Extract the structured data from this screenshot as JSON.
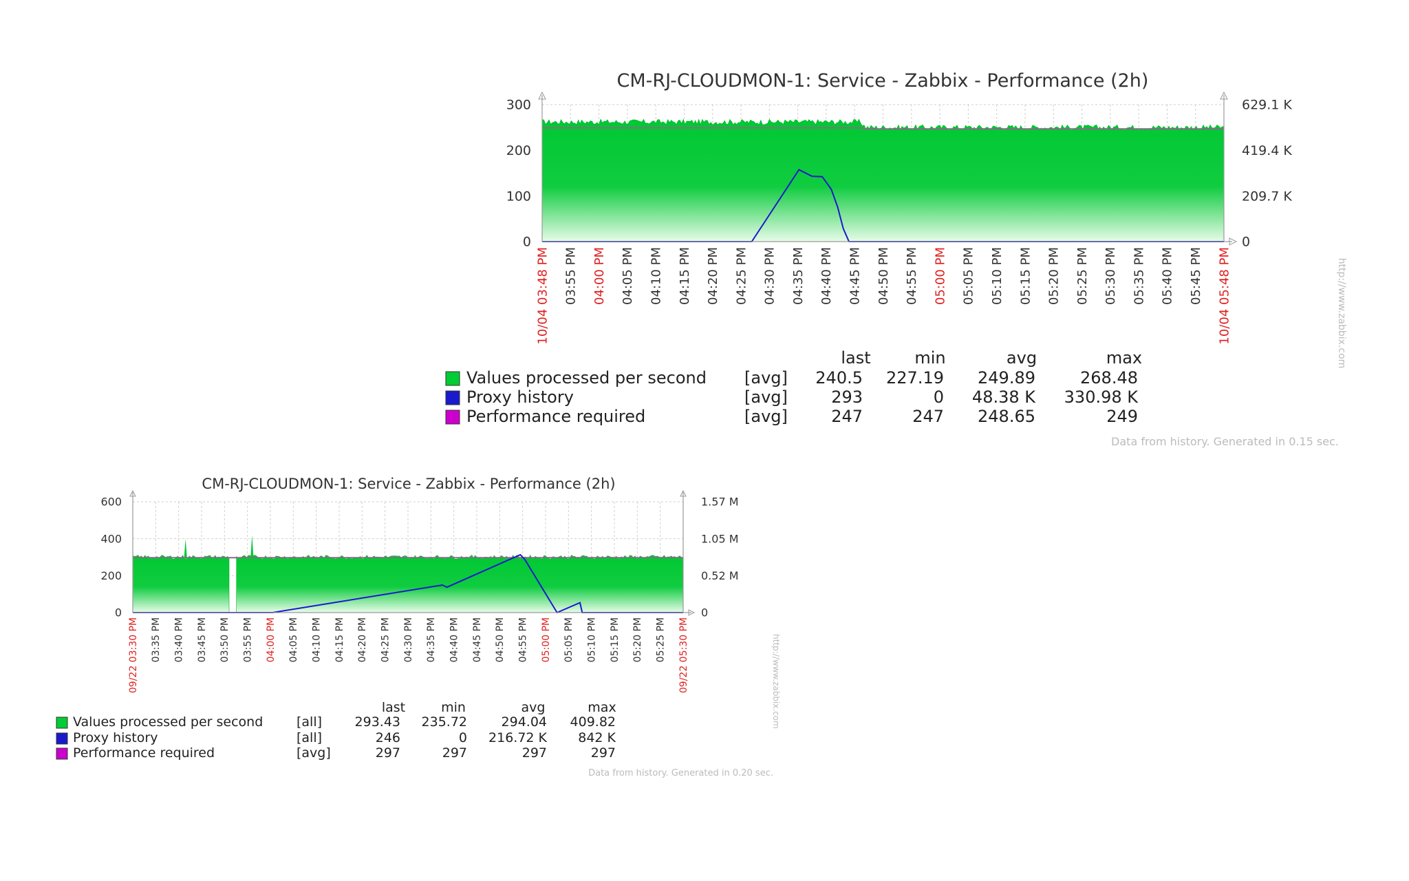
{
  "chart_data": [
    {
      "type": "area",
      "title": "CM-RJ-CLOUDMON-1: Service - Zabbix - Performance (2h)",
      "left_axis": {
        "ylim": [
          0,
          300
        ],
        "ticks": [
          "0",
          "100",
          "200",
          "300"
        ]
      },
      "right_axis": {
        "ylim": [
          0,
          629.1
        ],
        "unit": "K",
        "ticks": [
          "0",
          "209.7 K",
          "419.4 K",
          "629.1 K"
        ]
      },
      "x_ticks": [
        "10/04 03:48 PM",
        "03:55 PM",
        "04:00 PM",
        "04:05 PM",
        "04:10 PM",
        "04:15 PM",
        "04:20 PM",
        "04:25 PM",
        "04:30 PM",
        "04:35 PM",
        "04:40 PM",
        "04:45 PM",
        "04:50 PM",
        "04:55 PM",
        "05:00 PM",
        "05:05 PM",
        "05:10 PM",
        "05:15 PM",
        "05:20 PM",
        "05:25 PM",
        "05:30 PM",
        "05:35 PM",
        "05:40 PM",
        "05:45 PM",
        "10/04 05:48 PM"
      ],
      "x_ticks_red": [
        0,
        2,
        14,
        24
      ],
      "grid": true,
      "legend_headers": [
        "last",
        "min",
        "avg",
        "max"
      ],
      "legend": [
        {
          "name": "Values processed per second",
          "fn": "[avg]",
          "last": "240.5",
          "min": "227.19",
          "avg": "249.89",
          "max": "268.48",
          "color": "#00cc33"
        },
        {
          "name": "Proxy history",
          "fn": "[avg]",
          "last": "293",
          "min": "0",
          "avg": "48.38 K",
          "max": "330.98 K",
          "color": "#1a1acc"
        },
        {
          "name": "Performance required",
          "fn": "[avg]",
          "last": "247",
          "min": "247",
          "avg": "248.65",
          "max": "249",
          "color": "#cc00cc"
        }
      ],
      "series": [
        {
          "name": "Values processed per second",
          "axis": "left",
          "x": [
            0,
            56,
            57,
            120
          ],
          "y": [
            262,
            262,
            250,
            250
          ]
        },
        {
          "name": "Proxy history",
          "axis": "right",
          "x": [
            0,
            36.9,
            45.2,
            47.5,
            49.3,
            50.9,
            52.0,
            53.0,
            54.0,
            120
          ],
          "y": [
            0,
            0,
            330,
            300,
            298,
            240,
            160,
            60,
            0,
            0
          ]
        },
        {
          "name": "Performance required",
          "axis": "left",
          "x": [
            0,
            56,
            57,
            120
          ],
          "y": [
            249,
            249,
            247,
            247
          ]
        }
      ],
      "footer": "Data from history. Generated in 0.15 sec.",
      "credit": "http://www.zabbix.com"
    },
    {
      "type": "area",
      "title": "CM-RJ-CLOUDMON-1: Service - Zabbix - Performance (2h)",
      "left_axis": {
        "ylim": [
          0,
          600
        ],
        "ticks": [
          "0",
          "200",
          "400",
          "600"
        ]
      },
      "right_axis": {
        "ylim": [
          0,
          1.57
        ],
        "unit": "M",
        "ticks": [
          "0",
          "0.52 M",
          "1.05 M",
          "1.57 M"
        ]
      },
      "x_ticks": [
        "09/22 03:30 PM",
        "03:35 PM",
        "03:40 PM",
        "03:45 PM",
        "03:50 PM",
        "03:55 PM",
        "04:00 PM",
        "04:05 PM",
        "04:10 PM",
        "04:15 PM",
        "04:20 PM",
        "04:25 PM",
        "04:30 PM",
        "04:35 PM",
        "04:40 PM",
        "04:45 PM",
        "04:50 PM",
        "04:55 PM",
        "05:00 PM",
        "05:05 PM",
        "05:10 PM",
        "05:15 PM",
        "05:20 PM",
        "05:25 PM",
        "09/22 05:30 PM"
      ],
      "x_ticks_red": [
        0,
        6,
        18,
        24
      ],
      "grid": true,
      "legend_headers": [
        "last",
        "min",
        "avg",
        "max"
      ],
      "legend": [
        {
          "name": "Values processed per second",
          "fn": "[all]",
          "last": "293.43",
          "min": "235.72",
          "avg": "294.04",
          "max": "409.82",
          "color": "#00cc33"
        },
        {
          "name": "Proxy history",
          "fn": "[all]",
          "last": "246",
          "min": "0",
          "avg": "216.72 K",
          "max": "842 K",
          "color": "#1a1acc"
        },
        {
          "name": "Performance required",
          "fn": "[avg]",
          "last": "297",
          "min": "297",
          "avg": "297",
          "max": "297",
          "color": "#cc00cc"
        }
      ],
      "series": [
        {
          "name": "Values processed per second",
          "axis": "left",
          "x": [
            0,
            21,
            21.1,
            22.5,
            22.6,
            120
          ],
          "y": [
            300,
            300,
            null,
            null,
            300,
            300
          ]
        },
        {
          "name": "Proxy history",
          "axis": "right",
          "x": [
            0,
            30.5,
            67.5,
            68.5,
            84.5,
            85.5,
            92.5,
            97.5,
            98,
            120
          ],
          "y": [
            0,
            0,
            0.39,
            0.36,
            0.82,
            0.75,
            0.0,
            0.14,
            0,
            0
          ]
        },
        {
          "name": "Performance required",
          "axis": "left",
          "x": [
            0,
            120
          ],
          "y": [
            297,
            297
          ]
        }
      ],
      "footer": "Data from history. Generated in 0.20 sec.",
      "credit": "http://www.zabbix.com"
    }
  ]
}
